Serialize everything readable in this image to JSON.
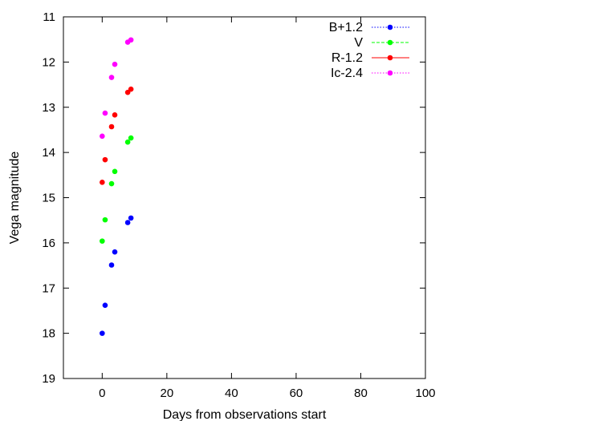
{
  "chart_data": {
    "type": "scatter",
    "xlabel": "Days from observations start",
    "ylabel": "Vega magnitude",
    "xlim": [
      -12,
      100
    ],
    "ylim": [
      11,
      19
    ],
    "y_inverted": true,
    "xticks": [
      0,
      20,
      40,
      60,
      80,
      100
    ],
    "yticks": [
      11,
      12,
      13,
      14,
      15,
      16,
      17,
      18,
      19
    ],
    "grid": false,
    "legend_position": "top-right",
    "series": [
      {
        "name": "B+1.2",
        "color": "#0000ff",
        "line_style": "dotted",
        "x": [
          0.0,
          0.9,
          2.9,
          3.9,
          7.9,
          8.9
        ],
        "y": [
          18.0,
          17.38,
          16.49,
          16.2,
          15.55,
          15.45
        ]
      },
      {
        "name": "V",
        "color": "#00ff00",
        "line_style": "dashed",
        "x": [
          0.0,
          0.9,
          2.9,
          3.9,
          7.9,
          8.9
        ],
        "y": [
          15.96,
          15.49,
          14.69,
          14.42,
          13.77,
          13.68
        ]
      },
      {
        "name": "R-1.2",
        "color": "#ff0000",
        "line_style": "solid",
        "x": [
          0.0,
          0.9,
          2.9,
          3.9,
          7.9,
          8.9
        ],
        "y": [
          14.66,
          14.16,
          13.43,
          13.17,
          12.67,
          12.6
        ]
      },
      {
        "name": "Ic-2.4",
        "color": "#ff00ff",
        "line_style": "dotted",
        "x": [
          0.0,
          0.9,
          2.9,
          3.9,
          7.9,
          8.9
        ],
        "y": [
          13.64,
          13.13,
          12.34,
          12.05,
          11.56,
          11.51
        ]
      }
    ]
  }
}
